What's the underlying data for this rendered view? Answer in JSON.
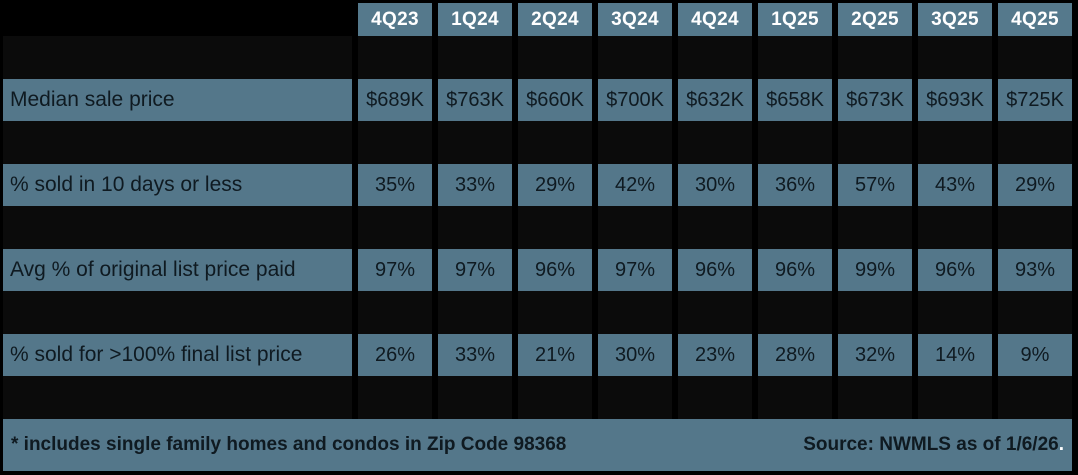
{
  "chart_data": {
    "type": "table",
    "categories": [
      "4Q23",
      "1Q24",
      "2Q24",
      "3Q24",
      "4Q24",
      "1Q25",
      "2Q25",
      "3Q25",
      "4Q25"
    ],
    "series": [
      {
        "name": "Median sale price",
        "values": [
          "$689K",
          "$763K",
          "$660K",
          "$700K",
          "$632K",
          "$658K",
          "$673K",
          "$693K",
          "$725K"
        ],
        "numeric": [
          689,
          763,
          660,
          700,
          632,
          658,
          673,
          693,
          725
        ]
      },
      {
        "name": "% sold in 10 days or less",
        "values": [
          "35%",
          "33%",
          "29%",
          "42%",
          "30%",
          "36%",
          "57%",
          "43%",
          "29%"
        ],
        "numeric": [
          35,
          33,
          29,
          42,
          30,
          36,
          57,
          43,
          29
        ]
      },
      {
        "name": "Avg % of original list price paid",
        "values": [
          "97%",
          "97%",
          "96%",
          "97%",
          "96%",
          "96%",
          "99%",
          "96%",
          "93%"
        ],
        "numeric": [
          97,
          97,
          96,
          97,
          96,
          96,
          99,
          96,
          93
        ]
      },
      {
        "name": "% sold for >100% final list price",
        "values": [
          "26%",
          "33%",
          "21%",
          "30%",
          "23%",
          "28%",
          "32%",
          "14%",
          "9%"
        ],
        "numeric": [
          26,
          33,
          21,
          30,
          23,
          28,
          32,
          14,
          9
        ]
      }
    ],
    "footnote": "* includes single family homes and condos in Zip Code 98368",
    "source": "Source: NWMLS as of 1/6/26",
    "source_suffix": ".",
    "layout": {
      "grid": "black gridlines, blank black rows between data rows",
      "legend": "none"
    }
  },
  "colors": {
    "background": "#000000",
    "cell": "#54778a",
    "header_cell": "#55798c",
    "header_text": "#ffffff",
    "body_text": "#0f1a21",
    "spacer_cell": "#0b0b0b",
    "source_suffix_color": "#ffffff"
  }
}
